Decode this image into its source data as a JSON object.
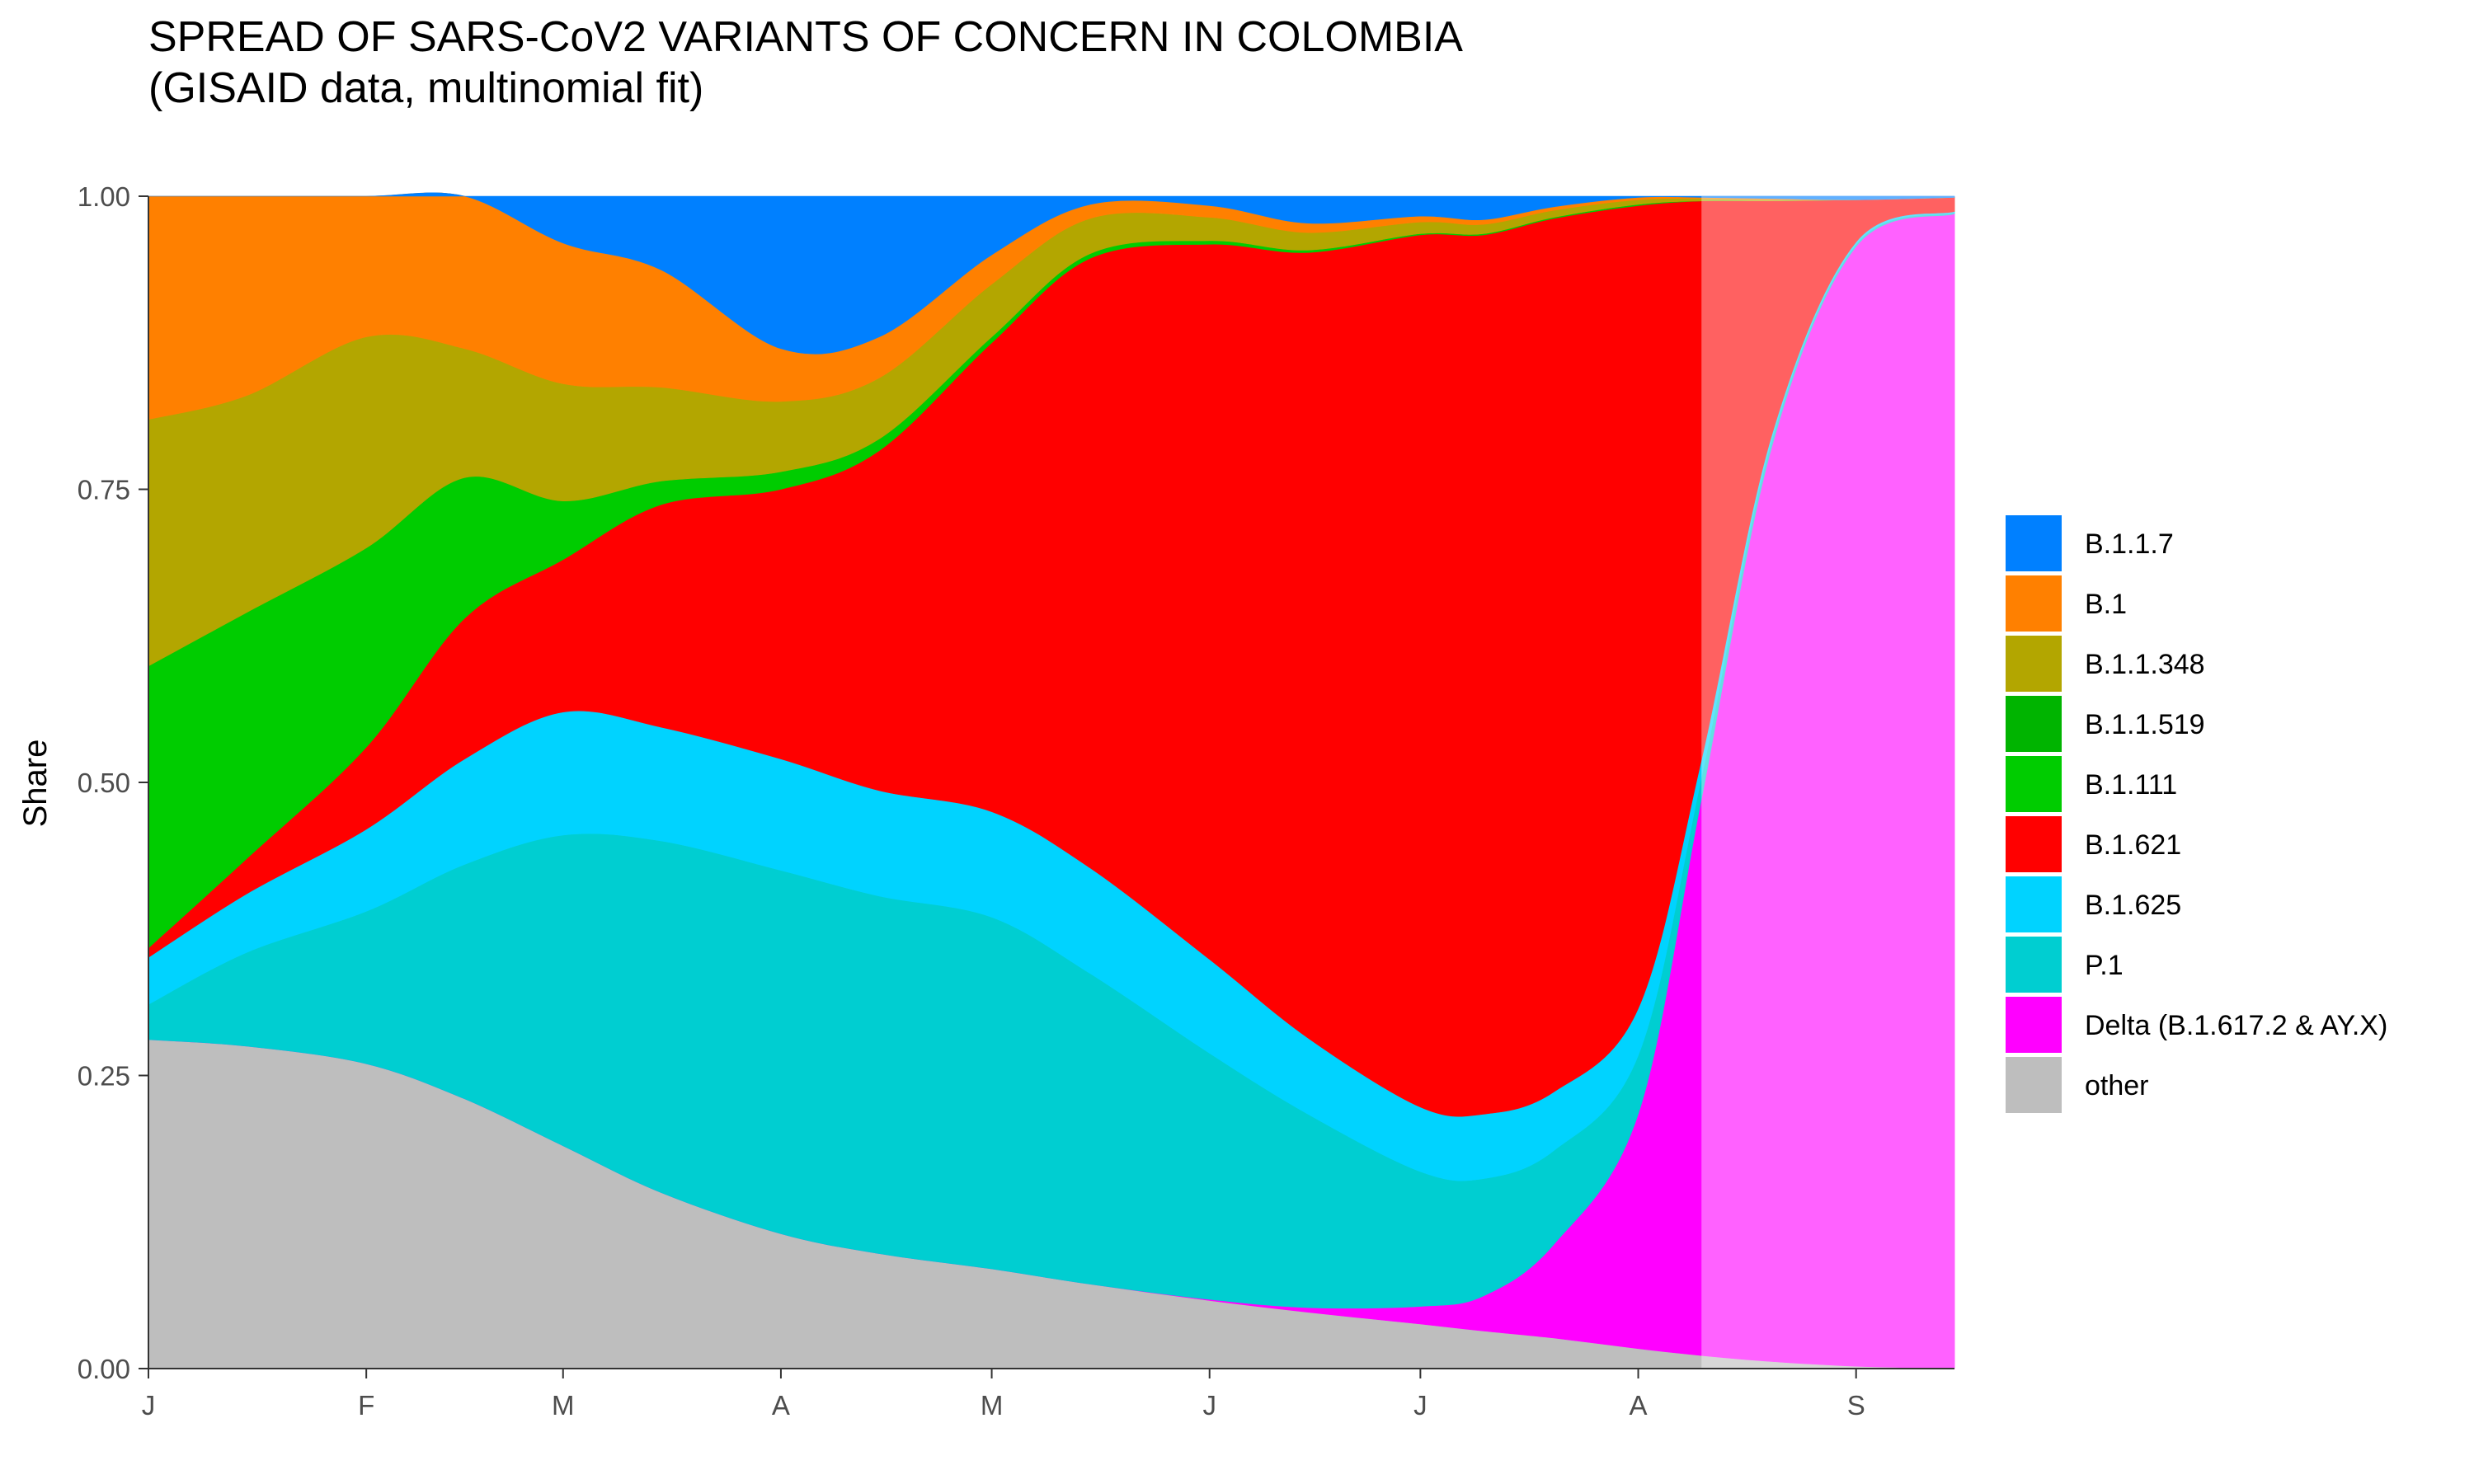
{
  "chart_data": {
    "type": "area",
    "stacked": true,
    "title": "SPREAD OF SARS-CoV2 VARIANTS OF CONCERN IN COLOMBIA",
    "subtitle": "(GISAID data, multinomial fit)",
    "xlabel": "",
    "ylabel": "Share",
    "ylim": [
      0,
      1
    ],
    "y_ticks": [
      "0.00",
      "0.25",
      "0.50",
      "0.75",
      "1.00"
    ],
    "x_ticks": [
      {
        "date": "2021-01-01",
        "label": "J"
      },
      {
        "date": "2021-02-01",
        "label": "F"
      },
      {
        "date": "2021-03-01",
        "label": "M"
      },
      {
        "date": "2021-04-01",
        "label": "A"
      },
      {
        "date": "2021-05-01",
        "label": "M"
      },
      {
        "date": "2021-06-01",
        "label": "J"
      },
      {
        "date": "2021-07-01",
        "label": "J"
      },
      {
        "date": "2021-08-01",
        "label": "A"
      },
      {
        "date": "2021-09-01",
        "label": "S"
      }
    ],
    "xlim": [
      "2021-01-01",
      "2021-09-15"
    ],
    "forecast_start": "2021-08-10",
    "grid": false,
    "legend_position": "right",
    "dates": [
      "2021-01-01",
      "2021-01-15",
      "2021-02-01",
      "2021-02-15",
      "2021-03-01",
      "2021-03-15",
      "2021-04-01",
      "2021-04-15",
      "2021-05-01",
      "2021-05-15",
      "2021-06-01",
      "2021-06-15",
      "2021-07-01",
      "2021-07-10",
      "2021-07-20",
      "2021-08-01",
      "2021-08-10",
      "2021-08-20",
      "2021-09-01",
      "2021-09-15"
    ],
    "series": [
      {
        "name": "other",
        "color": "#BEBEBE",
        "values": [
          0.28,
          0.275,
          0.26,
          0.23,
          0.19,
          0.15,
          0.115,
          0.098,
          0.085,
          0.072,
          0.058,
          0.048,
          0.038,
          0.032,
          0.026,
          0.017,
          0.011,
          0.006,
          0.002,
          0.0
        ]
      },
      {
        "name": "Delta (B.1.617.2 & AY.X)",
        "color": "#FF00FF",
        "values": [
          0.0,
          0.0,
          0.0,
          0.0,
          0.0,
          0.0,
          0.0,
          0.0,
          0.0,
          0.0,
          0.001,
          0.004,
          0.015,
          0.03,
          0.08,
          0.2,
          0.47,
          0.78,
          0.955,
          0.985
        ]
      },
      {
        "name": "P.1",
        "color": "#00CED1",
        "values": [
          0.03,
          0.08,
          0.13,
          0.2,
          0.265,
          0.3,
          0.31,
          0.305,
          0.3,
          0.265,
          0.21,
          0.165,
          0.115,
          0.1,
          0.08,
          0.05,
          0.018,
          0.006,
          0.002,
          0.001
        ]
      },
      {
        "name": "B.1.625",
        "color": "#00D3FF",
        "values": [
          0.04,
          0.05,
          0.07,
          0.09,
          0.105,
          0.097,
          0.095,
          0.09,
          0.09,
          0.09,
          0.08,
          0.065,
          0.055,
          0.055,
          0.05,
          0.04,
          0.015,
          0.004,
          0.002,
          0.001
        ]
      },
      {
        "name": "B.1.621",
        "color": "#FF0000",
        "values": [
          0.008,
          0.03,
          0.07,
          0.12,
          0.13,
          0.19,
          0.23,
          0.29,
          0.4,
          0.52,
          0.61,
          0.67,
          0.744,
          0.75,
          0.745,
          0.685,
          0.472,
          0.2,
          0.036,
          0.012
        ]
      },
      {
        "name": "B.1.111",
        "color": "#00CC00",
        "values": [
          0.24,
          0.21,
          0.17,
          0.12,
          0.05,
          0.02,
          0.015,
          0.01,
          0.005,
          0.004,
          0.003,
          0.002,
          0.001,
          0.001,
          0.001,
          0.001,
          0.0,
          0.0,
          0.0,
          0.0
        ]
      },
      {
        "name": "B.1.1.519",
        "color": "#00B400",
        "values": [
          0.0,
          0.0,
          0.0,
          0.0,
          0.0,
          0.0,
          0.0,
          0.0,
          0.0,
          0.0,
          0.0,
          0.0,
          0.0,
          0.0,
          0.0,
          0.0,
          0.0,
          0.0,
          0.0,
          0.0
        ]
      },
      {
        "name": "B.1.1.348",
        "color": "#B3A600",
        "values": [
          0.21,
          0.185,
          0.18,
          0.11,
          0.1,
          0.08,
          0.06,
          0.052,
          0.045,
          0.03,
          0.02,
          0.015,
          0.01,
          0.008,
          0.006,
          0.004,
          0.002,
          0.001,
          0.0,
          0.0
        ]
      },
      {
        "name": "B.1",
        "color": "#FF8000",
        "values": [
          0.19,
          0.17,
          0.12,
          0.13,
          0.12,
          0.1,
          0.045,
          0.035,
          0.025,
          0.012,
          0.01,
          0.008,
          0.005,
          0.004,
          0.003,
          0.002,
          0.001,
          0.001,
          0.0,
          0.0
        ]
      },
      {
        "name": "B.1.1.7",
        "color": "#0080FF",
        "values": [
          0.0,
          0.0,
          0.0,
          0.0,
          0.04,
          0.063,
          0.13,
          0.12,
          0.05,
          0.007,
          0.008,
          0.023,
          0.017,
          0.02,
          0.009,
          0.001,
          0.001,
          0.002,
          0.003,
          0.001
        ]
      }
    ],
    "legend_order": [
      "B.1.1.7",
      "B.1",
      "B.1.1.348",
      "B.1.1.519",
      "B.1.111",
      "B.1.621",
      "B.1.625",
      "P.1",
      "Delta (B.1.617.2 & AY.X)",
      "other"
    ]
  }
}
